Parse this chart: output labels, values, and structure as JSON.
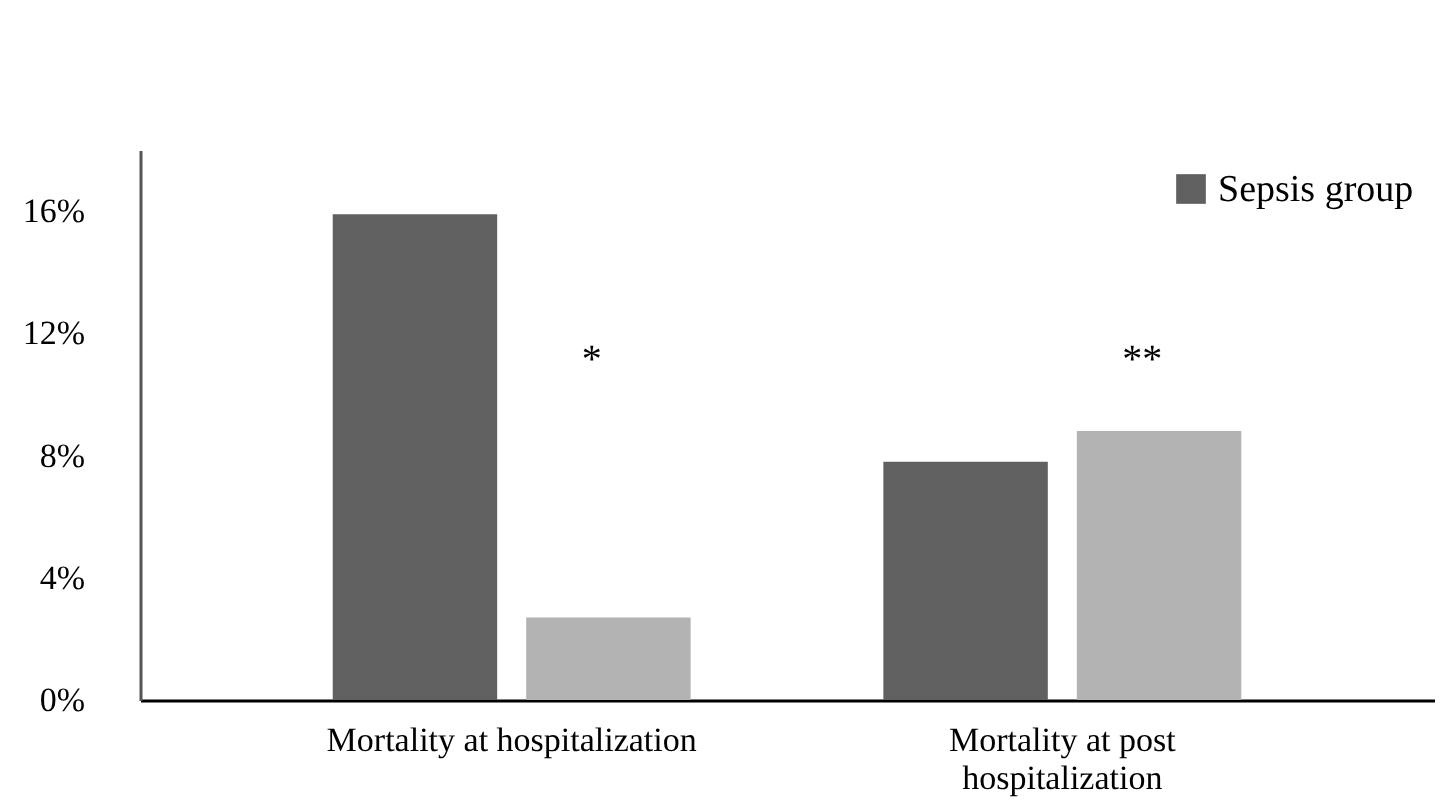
{
  "chart_data": {
    "type": "bar",
    "categories": [
      "Mortality at hospitalization",
      "Mortality at post hospitalization"
    ],
    "series": [
      {
        "name": "Sepsis group",
        "color": "#606060",
        "values": [
          15.9,
          7.8
        ]
      },
      {
        "color": "#b3b3b3",
        "values": [
          2.7,
          8.8
        ]
      }
    ],
    "ylim": [
      0,
      18
    ],
    "yticks": [
      {
        "value": 0,
        "label": "0%"
      },
      {
        "value": 4,
        "label": "4%"
      },
      {
        "value": 8,
        "label": "8%"
      },
      {
        "value": 12,
        "label": "12%"
      },
      {
        "value": 16,
        "label": "16%"
      }
    ],
    "annotations": [
      "*",
      "**"
    ],
    "grid": false,
    "legend": "top right"
  }
}
